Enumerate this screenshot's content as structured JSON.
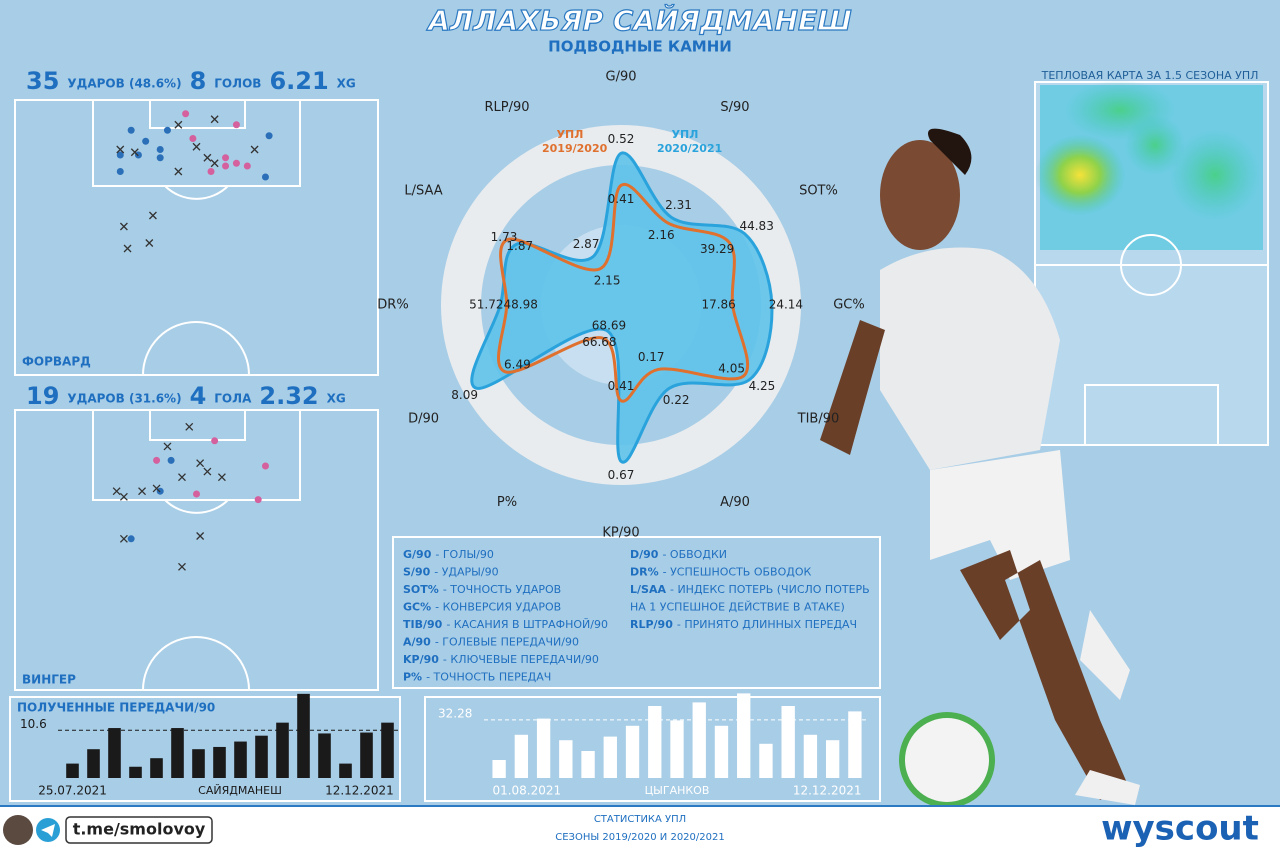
{
  "header": {
    "title": "АЛЛАХЬЯР САЙЯДМАНЕШ",
    "subtitle": "ПОДВОДНЫЕ КАМНИ"
  },
  "panels": [
    {
      "shots": 35,
      "shots_label": "УДАРОВ (48.6%)",
      "goals": 8,
      "goals_label": "ГОЛОВ",
      "xg": 6.21,
      "xg_label": "XG",
      "role": "ФОРВАРД"
    },
    {
      "shots": 19,
      "shots_label": "УДАРОВ (31.6%)",
      "goals": 4,
      "goals_label": "ГОЛА",
      "xg": 2.32,
      "xg_label": "XG",
      "role": "ВИНГЕР"
    }
  ],
  "heatmap": {
    "title": "ТЕПЛОВАЯ КАРТА ЗА 1.5 СЕЗОНА УПЛ"
  },
  "glossary": {
    "left": [
      {
        "abbr": "G/90",
        "desc": "- ГОЛЫ/90"
      },
      {
        "abbr": "S/90",
        "desc": "- УДАРЫ/90"
      },
      {
        "abbr": "SOT%",
        "desc": "- ТОЧНОСТЬ УДАРОВ"
      },
      {
        "abbr": "GC%",
        "desc": "- КОНВЕРСИЯ УДАРОВ"
      },
      {
        "abbr": "TIB/90",
        "desc": "- КАСАНИЯ В ШТРАФНОЙ/90"
      },
      {
        "abbr": "A/90",
        "desc": "- ГОЛЕВЫЕ ПЕРЕДАЧИ/90"
      },
      {
        "abbr": "KP/90",
        "desc": "- КЛЮЧЕВЫЕ ПЕРЕДАЧИ/90"
      },
      {
        "abbr": "P%",
        "desc": "- ТОЧНОСТЬ ПЕРЕДАЧ"
      }
    ],
    "right": [
      {
        "abbr": "D/90",
        "desc": "- ОБВОДКИ"
      },
      {
        "abbr": "DR%",
        "desc": "- УСПЕШНОСТЬ ОБВОДОК"
      },
      {
        "abbr": "L/SAA",
        "desc": "- ИНДЕКС ПОТЕРЬ (ЧИСЛО ПОТЕРЬ"
      },
      {
        "desc": "НА 1 УСПЕШНОЕ ДЕЙСТВИЕ В АТАКЕ)"
      },
      {
        "abbr": "RLP/90",
        "desc": "- ПРИНЯТО ДЛИННЫХ ПЕРЕДАЧ"
      }
    ]
  },
  "footer": {
    "channel": "t.me/smolovoy",
    "source_title": "СТАТИСТИКА УПЛ",
    "seasons": "СЕЗОНЫ 2019/2020 И 2020/2021",
    "brand": "wyscout"
  },
  "chart_data": [
    {
      "type": "radar",
      "axes": [
        {
          "label": "G/90",
          "lim": [
            0,
            0.6
          ]
        },
        {
          "label": "S/90",
          "lim": [
            0,
            4
          ]
        },
        {
          "label": "SOT%",
          "lim": [
            0,
            55
          ]
        },
        {
          "label": "GC%",
          "lim": [
            0,
            28
          ]
        },
        {
          "label": "TIB/90",
          "lim": [
            0,
            5
          ]
        },
        {
          "label": "A/90",
          "lim": [
            0,
            0.4
          ]
        },
        {
          "label": "KP/90",
          "lim": [
            0,
            0.75
          ]
        },
        {
          "label": "P%",
          "lim": [
            60,
            100
          ]
        },
        {
          "label": "D/90",
          "lim": [
            0,
            8.5
          ]
        },
        {
          "label": "DR%",
          "lim": [
            0,
            75
          ]
        },
        {
          "label": "L/SAA",
          "lim": [
            0,
            2.5
          ]
        },
        {
          "label": "RLP/90",
          "lim": [
            0,
            9
          ]
        }
      ],
      "series": [
        {
          "name": "УПЛ 2019/2020",
          "color": "#e0702e",
          "values": [
            0.41,
            2.16,
            39.29,
            17.86,
            4.05,
            0.17,
            0.41,
            68.69,
            6.49,
            48.98,
            1.87,
            2.15
          ]
        },
        {
          "name": "УПЛ 2020/2021",
          "color": "#2aa3dc",
          "values": [
            0.52,
            2.31,
            44.83,
            24.14,
            4.25,
            0.22,
            0.67,
            66.68,
            8.09,
            51.72,
            1.73,
            2.87
          ]
        }
      ]
    },
    {
      "type": "scatter",
      "xlim": [
        0,
        100
      ],
      "ylim": [
        0,
        100
      ],
      "series": [
        {
          "color": "#d4609e",
          "marker": "circle",
          "x": [
            47,
            61,
            49,
            58,
            58,
            61,
            64,
            54
          ],
          "y": [
            5,
            9,
            14,
            21,
            24,
            23,
            24,
            26
          ]
        },
        {
          "color": "#2a6fb8",
          "marker": "circle",
          "x": [
            32,
            36,
            42,
            29,
            34,
            40,
            70,
            69,
            40,
            29
          ],
          "y": [
            11,
            15,
            11,
            20,
            20,
            18,
            13,
            28,
            21,
            26
          ]
        },
        {
          "color": "#333333",
          "marker": "cross",
          "x": [
            45,
            55,
            29,
            33,
            53,
            55,
            66,
            45,
            30,
            38,
            31,
            37,
            50
          ],
          "y": [
            9,
            7,
            18,
            19,
            21,
            23,
            18,
            26,
            46,
            42,
            54,
            52,
            17
          ]
        }
      ]
    },
    {
      "type": "scatter",
      "xlim": [
        0,
        100
      ],
      "ylim": [
        0,
        100
      ],
      "series": [
        {
          "color": "#d4609e",
          "marker": "circle",
          "x": [
            55,
            39,
            69,
            50,
            67
          ],
          "y": [
            11,
            18,
            20,
            30,
            32
          ]
        },
        {
          "color": "#2a6fb8",
          "marker": "circle",
          "x": [
            43,
            32,
            40
          ],
          "y": [
            18,
            46,
            29
          ]
        },
        {
          "color": "#333333",
          "marker": "cross",
          "x": [
            48,
            42,
            51,
            53,
            46,
            28,
            35,
            30,
            39,
            57,
            51,
            30,
            46
          ],
          "y": [
            6,
            13,
            19,
            22,
            24,
            29,
            29,
            31,
            28,
            24,
            45,
            46,
            56
          ]
        }
      ]
    },
    {
      "type": "bar",
      "title": "ПОЛУЧЕННЫЕ ПЕРЕДАЧИ/90",
      "xlabel": "САЙЯДМАНЕШ",
      "color": "#1a1a1a",
      "categories": [
        "25.07.2021",
        null,
        null,
        null,
        null,
        null,
        null,
        null,
        null,
        null,
        null,
        null,
        null,
        null,
        null,
        "12.12.2021"
      ],
      "values": [
        3.2,
        6.4,
        11.1,
        2.5,
        4.4,
        11.1,
        6.4,
        6.9,
        8.1,
        9.4,
        12.3,
        18.7,
        9.9,
        3.2,
        10.1,
        12.3
      ],
      "ylim": [
        0,
        20
      ],
      "yticks": [
        10.6
      ]
    },
    {
      "type": "bar",
      "xlabel": "ЦЫГАНКОВ",
      "color": "#ffffff",
      "categories": [
        "01.08.2021",
        null,
        null,
        null,
        null,
        null,
        null,
        null,
        null,
        null,
        null,
        null,
        null,
        null,
        null,
        null,
        "12.12.2021"
      ],
      "values": [
        10,
        24,
        33,
        21,
        15,
        23,
        29,
        40,
        32,
        42,
        29,
        47,
        19,
        40,
        24,
        21,
        37
      ],
      "ylim": [
        0,
        50
      ],
      "yticks": [
        32.28
      ]
    }
  ]
}
